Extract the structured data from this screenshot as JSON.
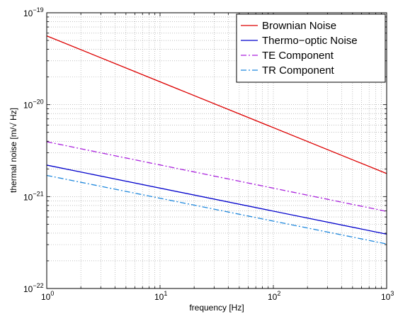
{
  "chart_data": {
    "type": "line",
    "title": "",
    "xlabel": "frequency [Hz]",
    "ylabel": "thermal noise [m/√ Hz]",
    "xscale": "log",
    "yscale": "log",
    "xlim": [
      1,
      1000
    ],
    "ylim": [
      1e-22,
      1e-19
    ],
    "grid": true,
    "legend_position": "top-right",
    "x_ticks": [
      {
        "value": 1,
        "base": "10",
        "exp": "0"
      },
      {
        "value": 10,
        "base": "10",
        "exp": "1"
      },
      {
        "value": 100,
        "base": "10",
        "exp": "2"
      },
      {
        "value": 1000,
        "base": "10",
        "exp": "3"
      }
    ],
    "y_ticks": [
      {
        "value": 1e-22,
        "base": "10",
        "exp": "−22"
      },
      {
        "value": 1e-21,
        "base": "10",
        "exp": "−21"
      },
      {
        "value": 1e-20,
        "base": "10",
        "exp": "−20"
      },
      {
        "value": 1e-19,
        "base": "10",
        "exp": "−19"
      }
    ],
    "series": [
      {
        "name": "Brownian Noise",
        "color": "#dd0000",
        "style": "solid",
        "x": [
          1,
          1000
        ],
        "y": [
          5.6e-20,
          1.78e-21
        ]
      },
      {
        "name": "Thermo−optic Noise",
        "color": "#0000cc",
        "style": "solid",
        "x": [
          1,
          1000
        ],
        "y": [
          2.2e-21,
          3.9e-22
        ]
      },
      {
        "name": "TE Component",
        "color": "#aa22dd",
        "style": "dashdot",
        "x": [
          1,
          1000
        ],
        "y": [
          3.95e-21,
          6.9e-22
        ]
      },
      {
        "name": "TR Component",
        "color": "#1f88dd",
        "style": "dashdot",
        "x": [
          1,
          1000
        ],
        "y": [
          1.7e-21,
          3.05e-22
        ]
      }
    ]
  }
}
